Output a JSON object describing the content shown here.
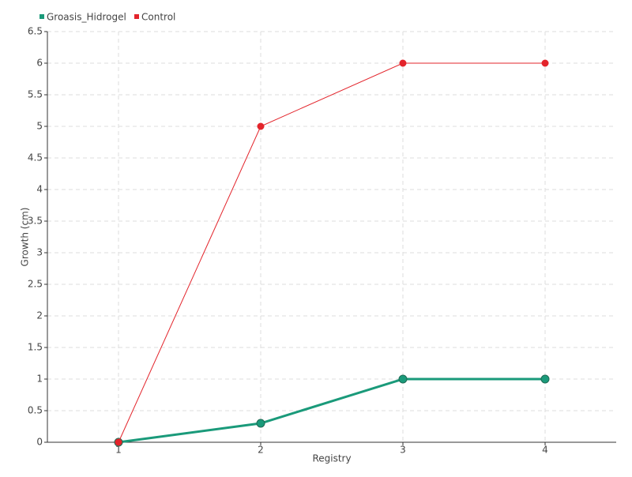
{
  "chart_data": {
    "type": "line",
    "xlabel": "Registry",
    "ylabel": "Growth (cm)",
    "x": [
      1,
      2,
      3,
      4
    ],
    "series": [
      {
        "name": "Groasis_Hidrogel",
        "color": "#1a9a7a",
        "values": [
          0,
          0.3,
          1,
          1
        ]
      },
      {
        "name": "Control",
        "color": "#e3242b",
        "values": [
          0,
          5,
          6,
          6
        ]
      }
    ],
    "xlim": [
      0.5,
      4.5
    ],
    "xticks": [
      1,
      2,
      3,
      4
    ],
    "ylim": [
      0,
      6.5
    ],
    "yticks": [
      0,
      0.5,
      1,
      1.5,
      2,
      2.5,
      3,
      3.5,
      4,
      4.5,
      5,
      5.5,
      6,
      6.5
    ],
    "grid": true,
    "legend": "top-left"
  }
}
